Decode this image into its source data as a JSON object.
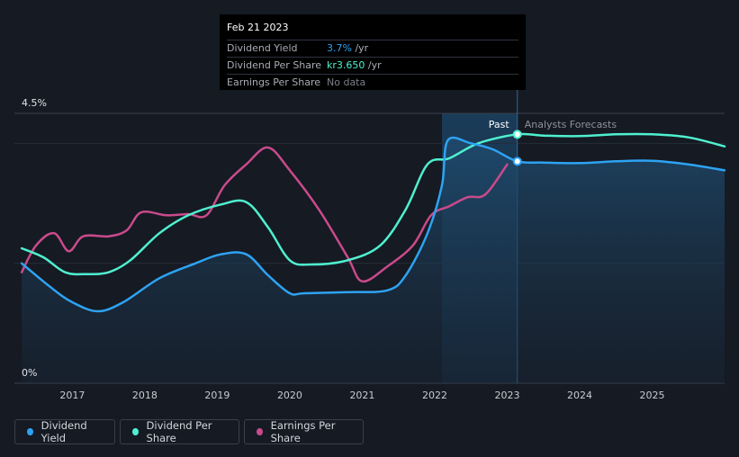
{
  "tooltip": {
    "date": "Feb 21 2023",
    "rows": [
      {
        "label": "Dividend Yield",
        "value": "3.7%",
        "unit": " /yr"
      },
      {
        "label": "Dividend Per Share",
        "value": "kr3.650",
        "unit": " /yr"
      },
      {
        "label": "Earnings Per Share",
        "value": "No data",
        "unit": ""
      }
    ]
  },
  "legend": [
    "Dividend Yield",
    "Dividend Per Share",
    "Earnings Per Share"
  ],
  "colors": {
    "dividend_yield": "#2ea3f2",
    "dividend_per_share": "#4ff0cf",
    "earnings_per_share": "#c94a8b",
    "background": "#151a23"
  },
  "chart_data": {
    "type": "line",
    "title": "",
    "y_axis": {
      "min_label": "0%",
      "max_label": "4.5%",
      "ylim": [
        0,
        4.5
      ]
    },
    "x_tick_labels": [
      "2017",
      "2018",
      "2019",
      "2020",
      "2021",
      "2022",
      "2023",
      "2024",
      "2025"
    ],
    "xlim": [
      2016.2,
      2026.0
    ],
    "past_label": "Past",
    "forecast_label": "Analysts Forecasts",
    "past_end": 2023.14,
    "series": [
      {
        "name": "Dividend Yield",
        "points": [
          [
            2016.3,
            2.0
          ],
          [
            2016.7,
            1.6
          ],
          [
            2017.0,
            1.35
          ],
          [
            2017.35,
            1.2
          ],
          [
            2017.7,
            1.35
          ],
          [
            2018.2,
            1.75
          ],
          [
            2018.7,
            2.0
          ],
          [
            2019.05,
            2.15
          ],
          [
            2019.4,
            2.15
          ],
          [
            2019.7,
            1.8
          ],
          [
            2020.0,
            1.5
          ],
          [
            2020.2,
            1.5
          ],
          [
            2020.8,
            1.52
          ],
          [
            2021.35,
            1.55
          ],
          [
            2021.6,
            1.8
          ],
          [
            2021.9,
            2.5
          ],
          [
            2022.1,
            3.3
          ],
          [
            2022.18,
            4.05
          ],
          [
            2022.5,
            4.0
          ],
          [
            2022.8,
            3.9
          ],
          [
            2023.14,
            3.7
          ],
          [
            2023.5,
            3.68
          ],
          [
            2024.0,
            3.67
          ],
          [
            2024.5,
            3.7
          ],
          [
            2025.0,
            3.71
          ],
          [
            2025.5,
            3.65
          ],
          [
            2026.0,
            3.55
          ]
        ]
      },
      {
        "name": "Dividend Per Share",
        "points": [
          [
            2016.3,
            2.25
          ],
          [
            2016.6,
            2.1
          ],
          [
            2016.9,
            1.85
          ],
          [
            2017.2,
            1.82
          ],
          [
            2017.5,
            1.85
          ],
          [
            2017.8,
            2.05
          ],
          [
            2018.2,
            2.5
          ],
          [
            2018.6,
            2.8
          ],
          [
            2019.05,
            2.98
          ],
          [
            2019.4,
            3.02
          ],
          [
            2019.7,
            2.6
          ],
          [
            2020.0,
            2.05
          ],
          [
            2020.3,
            1.98
          ],
          [
            2020.8,
            2.05
          ],
          [
            2021.25,
            2.3
          ],
          [
            2021.6,
            2.9
          ],
          [
            2021.9,
            3.65
          ],
          [
            2022.2,
            3.75
          ],
          [
            2022.6,
            4.0
          ],
          [
            2023.14,
            4.15
          ],
          [
            2023.5,
            4.13
          ],
          [
            2024.0,
            4.12
          ],
          [
            2024.5,
            4.15
          ],
          [
            2025.0,
            4.15
          ],
          [
            2025.5,
            4.1
          ],
          [
            2026.0,
            3.95
          ]
        ]
      },
      {
        "name": "Earnings Per Share",
        "points": [
          [
            2016.3,
            1.85
          ],
          [
            2016.5,
            2.3
          ],
          [
            2016.75,
            2.5
          ],
          [
            2016.95,
            2.2
          ],
          [
            2017.15,
            2.45
          ],
          [
            2017.5,
            2.45
          ],
          [
            2017.75,
            2.55
          ],
          [
            2017.95,
            2.85
          ],
          [
            2018.3,
            2.8
          ],
          [
            2018.6,
            2.82
          ],
          [
            2018.85,
            2.8
          ],
          [
            2019.1,
            3.3
          ],
          [
            2019.4,
            3.65
          ],
          [
            2019.7,
            3.93
          ],
          [
            2020.0,
            3.55
          ],
          [
            2020.4,
            2.9
          ],
          [
            2020.8,
            2.1
          ],
          [
            2021.0,
            1.7
          ],
          [
            2021.35,
            1.95
          ],
          [
            2021.7,
            2.3
          ],
          [
            2021.95,
            2.8
          ],
          [
            2022.2,
            2.95
          ],
          [
            2022.45,
            3.1
          ],
          [
            2022.7,
            3.15
          ],
          [
            2023.0,
            3.65
          ]
        ]
      }
    ]
  }
}
